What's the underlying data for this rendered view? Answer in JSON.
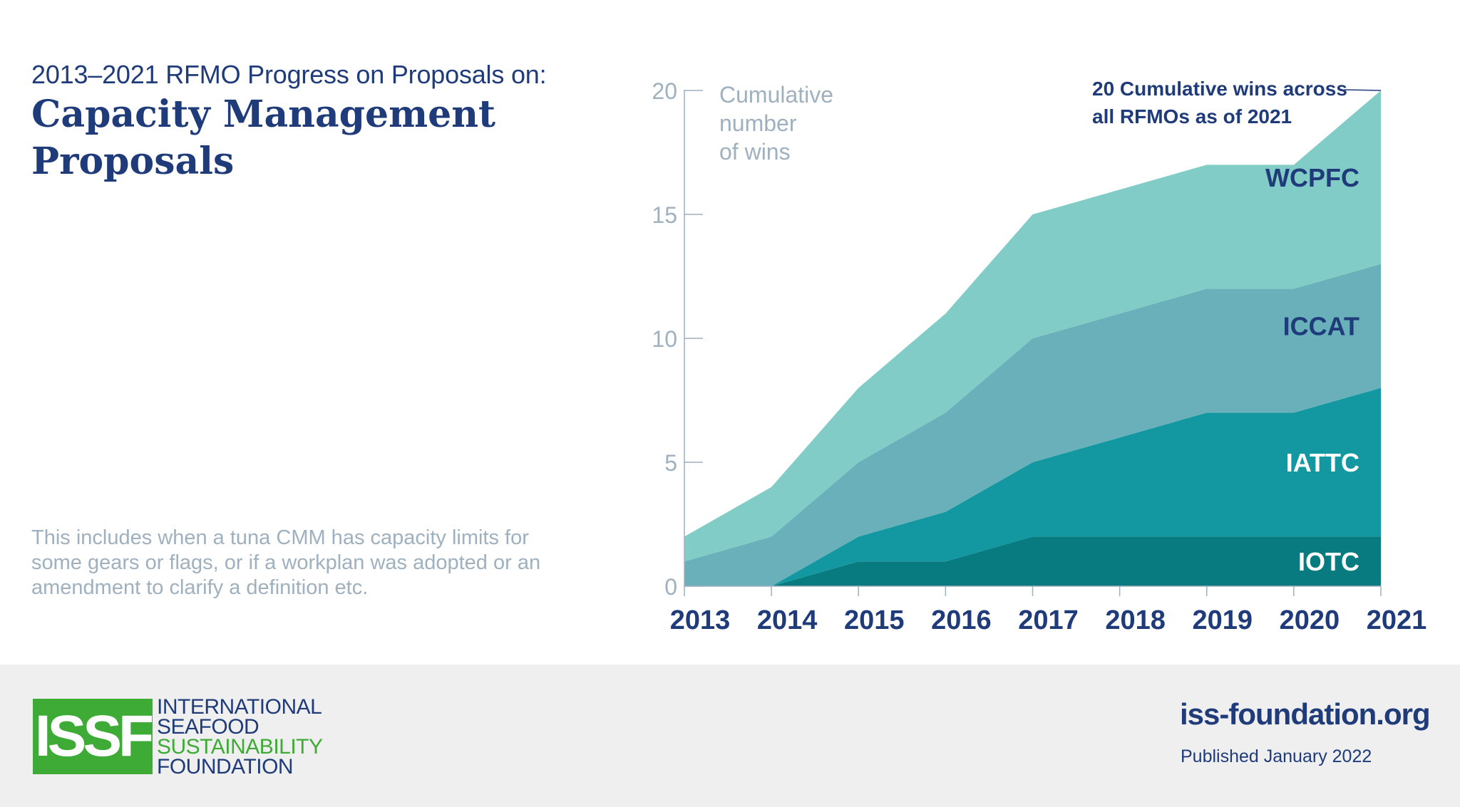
{
  "header": {
    "subtitle": "2013–2021 RFMO Progress on Proposals on:",
    "title": "Capacity Management Proposals"
  },
  "note": "This includes when a tuna CMM has capacity limits for some gears or flags, or if a workplan was adopted or an amendment to clarify a definition etc.",
  "chart_data": {
    "type": "area",
    "stacked": true,
    "x": [
      "2013",
      "2014",
      "2015",
      "2016",
      "2017",
      "2018",
      "2019",
      "2020",
      "2021"
    ],
    "ylim": [
      0,
      20
    ],
    "yticks": [
      0,
      5,
      10,
      15,
      20
    ],
    "ylabel_lines": [
      "Cumulative",
      "number",
      "of wins"
    ],
    "grid": false,
    "series": [
      {
        "name": "IOTC",
        "values": [
          0,
          0,
          1,
          1,
          2,
          2,
          2,
          2,
          2
        ],
        "color": "#077b7f"
      },
      {
        "name": "IATTC",
        "values": [
          0,
          0,
          1,
          2,
          3,
          4,
          5,
          5,
          6
        ],
        "color": "#1398a1"
      },
      {
        "name": "ICCAT",
        "values": [
          1,
          2,
          3,
          4,
          5,
          5,
          5,
          5,
          5
        ],
        "color": "#69b0ba"
      },
      {
        "name": "WCPFC",
        "values": [
          1,
          2,
          3,
          4,
          5,
          5,
          5,
          5,
          7
        ],
        "color": "#82ccc7"
      }
    ],
    "annotation_lines": [
      "20 Cumulative wins across",
      "all RFMOs as of 2021"
    ],
    "annotation_point": {
      "x": "2021",
      "y": 20
    }
  },
  "footer": {
    "logo_mark": "ISSF",
    "logo_lines": [
      "INTERNATIONAL",
      "SEAFOOD",
      "SUSTAINABILITY",
      "FOUNDATION"
    ],
    "website": "iss-foundation.org",
    "published": "Published January 2022"
  },
  "colors": {
    "brand_blue": "#1f3b7a",
    "brand_green": "#3dab35",
    "axis": "#9fb0bf",
    "footer_bg": "#efefef"
  }
}
